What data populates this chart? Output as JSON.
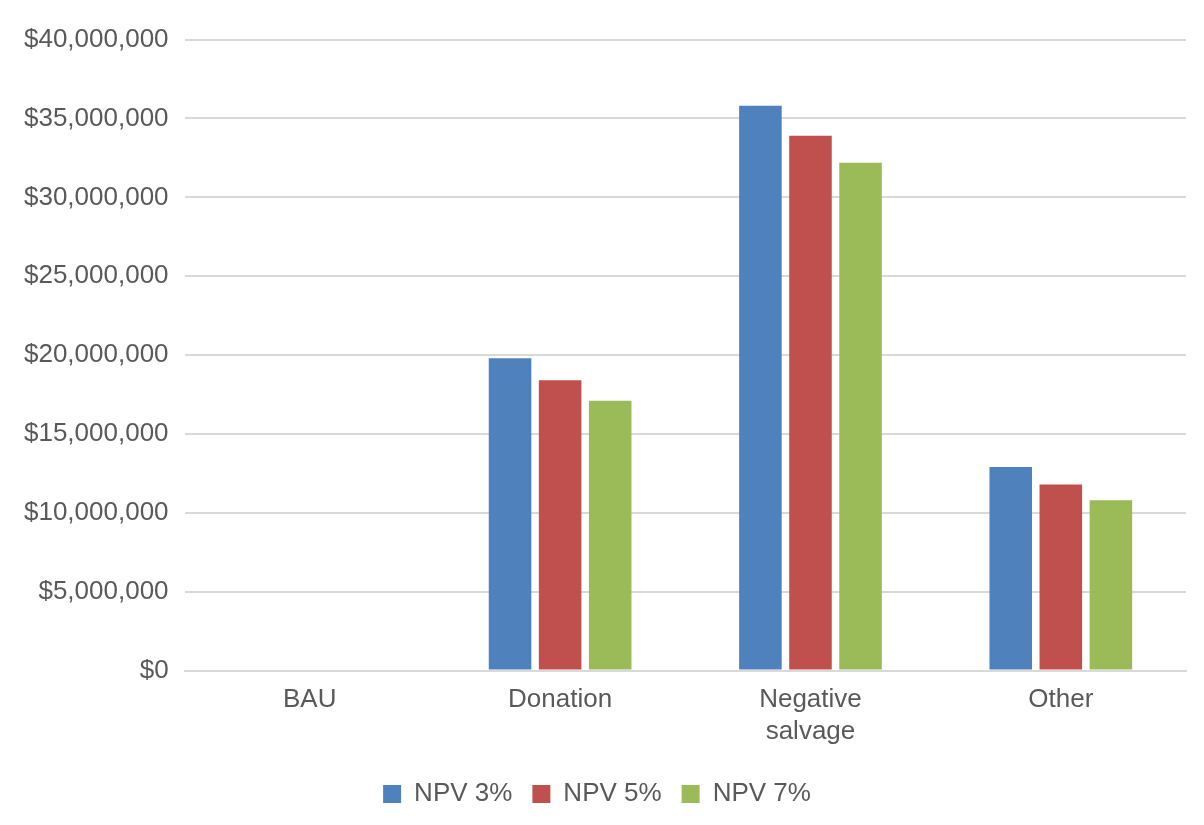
{
  "chart_data": {
    "type": "bar",
    "categories": [
      "BAU",
      "Donation",
      "Negative salvage",
      "Other"
    ],
    "series": [
      {
        "name": "NPV 3%",
        "color": "#4f81bd",
        "values": [
          0,
          19800000,
          35800000,
          12900000
        ]
      },
      {
        "name": "NPV 5%",
        "color": "#c0504d",
        "values": [
          0,
          18400000,
          33900000,
          11800000
        ]
      },
      {
        "name": "NPV 7%",
        "color": "#9bbb59",
        "values": [
          0,
          17100000,
          32200000,
          10800000
        ]
      }
    ],
    "ylim": [
      0,
      40000000
    ],
    "yticks": [
      {
        "value": 0,
        "label": "$0"
      },
      {
        "value": 5000000,
        "label": "$5,000,000"
      },
      {
        "value": 10000000,
        "label": "$10,000,000"
      },
      {
        "value": 15000000,
        "label": "$15,000,000"
      },
      {
        "value": 20000000,
        "label": "$20,000,000"
      },
      {
        "value": 25000000,
        "label": "$25,000,000"
      },
      {
        "value": 30000000,
        "label": "$30,000,000"
      },
      {
        "value": 35000000,
        "label": "$35,000,000"
      },
      {
        "value": 40000000,
        "label": "$40,000,000"
      }
    ],
    "grid": "y",
    "legend": "bottom"
  }
}
